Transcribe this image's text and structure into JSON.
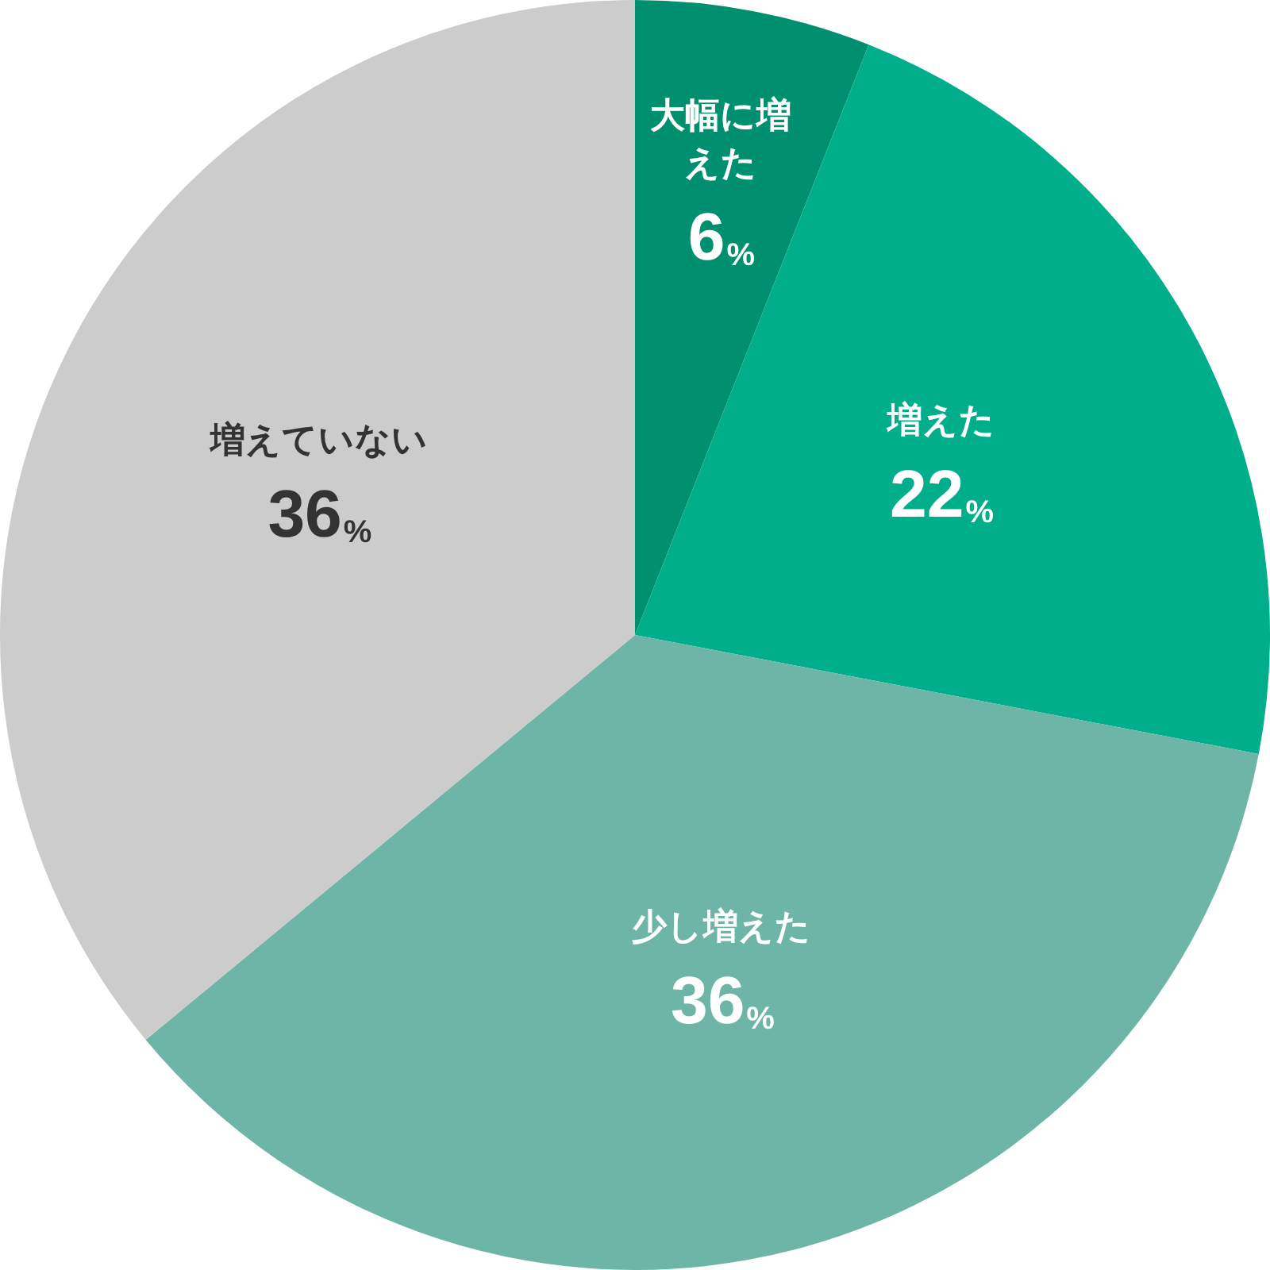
{
  "chart_data": {
    "type": "pie",
    "categories": [
      "大幅に増えた",
      "増えた",
      "少し増えた",
      "増えていない"
    ],
    "values": [
      6,
      22,
      36,
      36
    ],
    "value_labels": [
      "6%",
      "22%",
      "36%",
      "36%"
    ],
    "colors": [
      "#008f6f",
      "#00ae8b",
      "#6db5a6",
      "#cccccc"
    ],
    "legend": false
  }
}
